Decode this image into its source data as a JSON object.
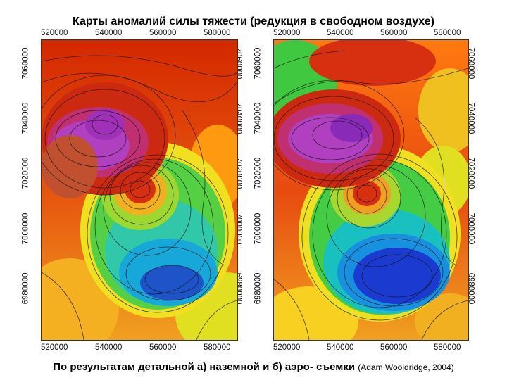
{
  "title": "Карты аномалий силы тяжести (редукция в свободном воздухе)",
  "caption": {
    "main": "По результатам детальной а) наземной и б) аэро- съемки",
    "credit": "(Adam Wooldridge, 2004)"
  },
  "maps": [
    {
      "id": "ground-survey",
      "x_ticks": [
        "520000",
        "540000",
        "560000",
        "580000"
      ],
      "y_ticks": [
        "7060000",
        "7040000",
        "7020000",
        "7000000",
        "6980000"
      ],
      "palette": [
        "#cc0000",
        "#ff8800",
        "#ffcc00",
        "#33cc33",
        "#00aacc",
        "#0033cc",
        "#aa33cc"
      ]
    },
    {
      "id": "airborne-survey",
      "x_ticks": [
        "520000",
        "540000",
        "560000",
        "580000"
      ],
      "y_ticks": [
        "7060000",
        "7040000",
        "7020000",
        "7000000",
        "6980000"
      ],
      "palette": [
        "#cc0000",
        "#ff8800",
        "#ffcc00",
        "#33cc33",
        "#00aacc",
        "#0033cc",
        "#aa33cc"
      ]
    }
  ]
}
